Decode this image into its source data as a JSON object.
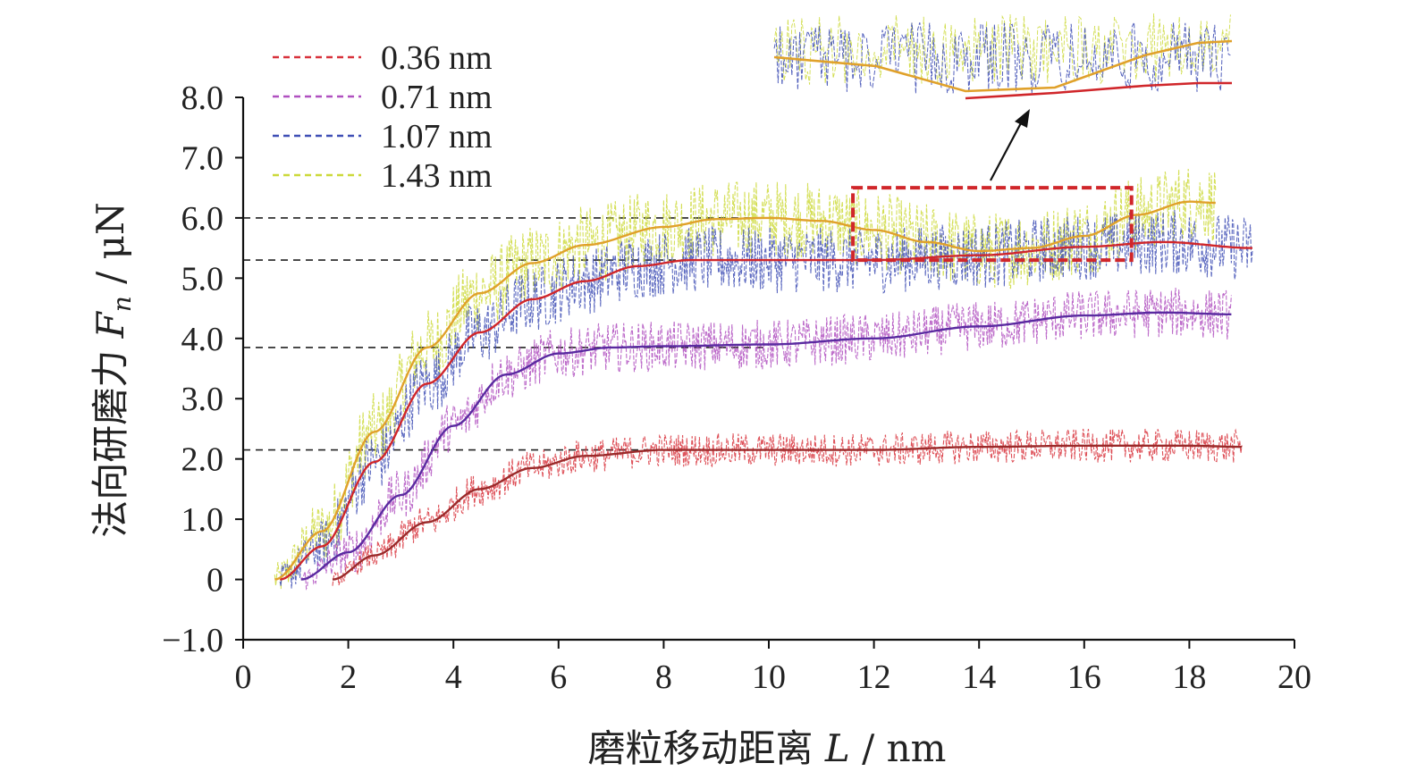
{
  "chart_data": {
    "type": "line",
    "title": "",
    "xlabel_main": "磨粒移动距离 ",
    "xlabel_var": "L",
    "xlabel_unit": " / nm",
    "ylabel_main": "法向研磨力 ",
    "ylabel_var": "F",
    "ylabel_sub": "n",
    "ylabel_unit": " / μN",
    "xlim": [
      0,
      20
    ],
    "ylim": [
      -1.0,
      8.0
    ],
    "x_ticks": [
      0,
      2,
      4,
      6,
      8,
      10,
      12,
      14,
      16,
      18,
      20
    ],
    "x_tick_labels": [
      "0",
      "2",
      "4",
      "6",
      "8",
      "10",
      "12",
      "14",
      "16",
      "18",
      "20"
    ],
    "y_ticks": [
      -1,
      0,
      1,
      2,
      3,
      4,
      5,
      6,
      7,
      8
    ],
    "y_tick_labels": [
      "−1.0",
      "0",
      "1.0",
      "2.0",
      "3.0",
      "4.0",
      "5.0",
      "6.0",
      "7.0",
      "8.0"
    ],
    "legend_position": "top-left",
    "series": [
      {
        "name": "0.36 nm",
        "noise_color": "#d8323c",
        "fit_color": "#9b2a2a",
        "noise_amp": 0.28,
        "fit": [
          [
            1.7,
            0
          ],
          [
            2.5,
            0.4
          ],
          [
            3.5,
            0.95
          ],
          [
            4.5,
            1.5
          ],
          [
            5.5,
            1.85
          ],
          [
            6.5,
            2.05
          ],
          [
            8,
            2.15
          ],
          [
            10,
            2.15
          ],
          [
            12,
            2.15
          ],
          [
            14,
            2.2
          ],
          [
            16,
            2.22
          ],
          [
            18,
            2.22
          ],
          [
            19,
            2.2
          ]
        ]
      },
      {
        "name": "0.71 nm",
        "noise_color": "#b050c0",
        "fit_color": "#5a2aa0",
        "noise_amp": 0.42,
        "fit": [
          [
            1.1,
            0
          ],
          [
            2,
            0.45
          ],
          [
            3,
            1.4
          ],
          [
            4,
            2.55
          ],
          [
            5,
            3.4
          ],
          [
            6,
            3.75
          ],
          [
            7,
            3.85
          ],
          [
            8,
            3.87
          ],
          [
            10,
            3.9
          ],
          [
            12,
            4.0
          ],
          [
            14,
            4.2
          ],
          [
            16,
            4.38
          ],
          [
            17.5,
            4.43
          ],
          [
            18.8,
            4.4
          ]
        ]
      },
      {
        "name": "1.07 nm",
        "noise_color": "#3f4fb5",
        "fit_color": "#d0262a",
        "noise_amp": 0.55,
        "fit": [
          [
            0.7,
            0
          ],
          [
            1.5,
            0.55
          ],
          [
            2.5,
            1.95
          ],
          [
            3.5,
            3.25
          ],
          [
            4.5,
            4.1
          ],
          [
            5.5,
            4.65
          ],
          [
            6.5,
            4.95
          ],
          [
            7.5,
            5.2
          ],
          [
            8.5,
            5.3
          ],
          [
            10,
            5.3
          ],
          [
            12,
            5.3
          ],
          [
            14,
            5.38
          ],
          [
            16,
            5.52
          ],
          [
            17.5,
            5.6
          ],
          [
            19.2,
            5.5
          ]
        ]
      },
      {
        "name": "1.43 nm",
        "noise_color": "#ccd93a",
        "fit_color": "#e0a12a",
        "noise_amp": 0.65,
        "fit": [
          [
            0.6,
            0
          ],
          [
            1.5,
            0.8
          ],
          [
            2.5,
            2.45
          ],
          [
            3.5,
            3.85
          ],
          [
            4.5,
            4.75
          ],
          [
            5.5,
            5.25
          ],
          [
            6.5,
            5.55
          ],
          [
            8,
            5.85
          ],
          [
            9,
            5.98
          ],
          [
            10,
            6.0
          ],
          [
            11,
            5.95
          ],
          [
            12,
            5.8
          ],
          [
            13,
            5.6
          ],
          [
            14,
            5.45
          ],
          [
            15,
            5.5
          ],
          [
            16,
            5.7
          ],
          [
            17,
            6.05
          ],
          [
            18,
            6.27
          ],
          [
            18.5,
            6.25
          ]
        ]
      }
    ],
    "reference_lines_y": [
      6.0,
      5.3,
      3.85,
      2.15
    ],
    "highlight_box": {
      "x": [
        11.6,
        16.9
      ],
      "y": [
        5.3,
        6.5
      ]
    }
  }
}
